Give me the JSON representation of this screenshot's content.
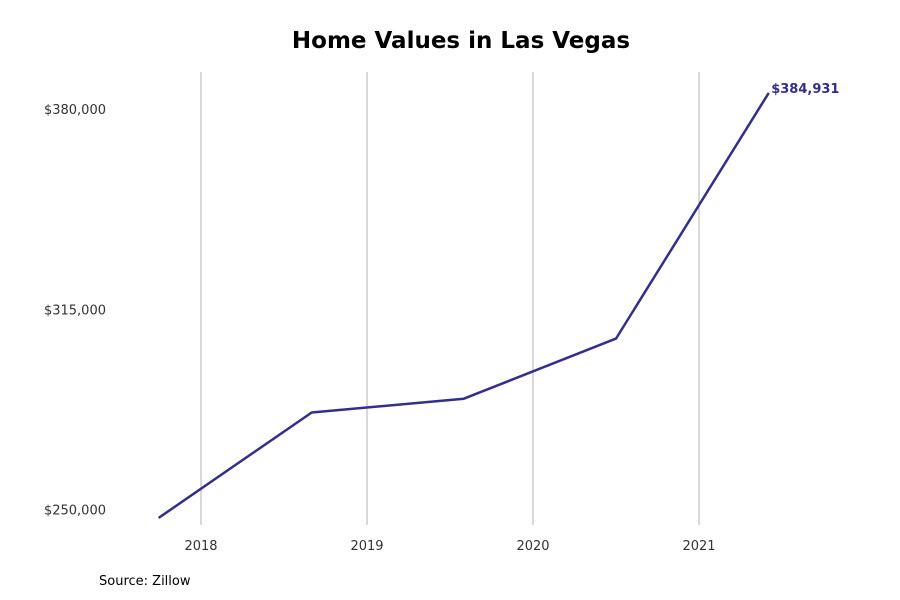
{
  "chart_data": {
    "type": "line",
    "title": "Home Values in Las Vegas",
    "xlabel": "",
    "ylabel": "",
    "x": [
      2017.75,
      2018.667,
      2019.583,
      2020.5,
      2021.417
    ],
    "series": [
      {
        "values": [
          247500,
          281500,
          286000,
          305500,
          384931
        ],
        "color": "#332e8c"
      }
    ],
    "end_label": "$384,931",
    "x_ticks": [
      2018,
      2019,
      2020,
      2021
    ],
    "x_tick_labels": [
      "2018",
      "2019",
      "2020",
      "2021"
    ],
    "y_ticks": [
      250000,
      315000,
      380000
    ],
    "y_tick_labels": [
      "$250,000",
      "$315,000",
      "$380,000"
    ],
    "xlim": [
      2017.5,
      2022
    ],
    "ylim": [
      245000,
      392000
    ],
    "grid": "vertical",
    "legend": "none"
  },
  "source": "Source: Zillow",
  "colors": {
    "line": "#332e8c",
    "grid": "#b0b0b0"
  }
}
